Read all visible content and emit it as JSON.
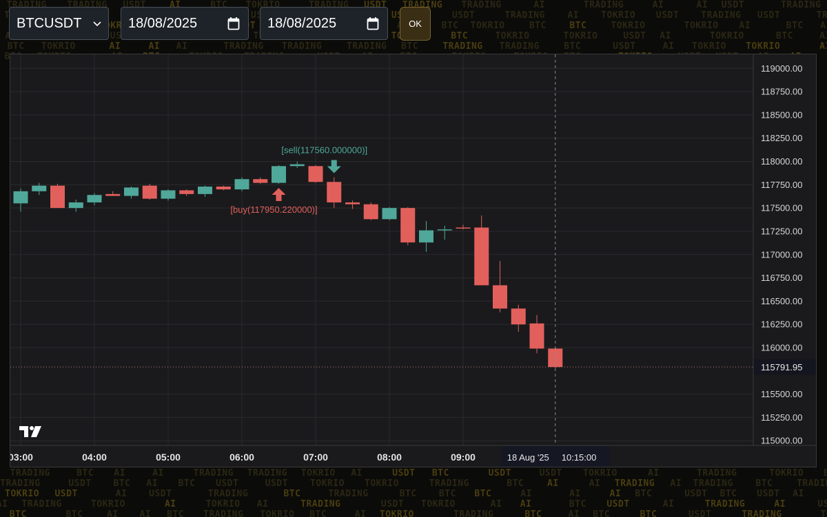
{
  "background_words": [
    "BTC",
    "AI",
    "TRADING",
    "TOKRIO",
    "USDT"
  ],
  "toolbar": {
    "symbol_select": {
      "value": "BTCUSDT",
      "icon": "chevron-down-icon"
    },
    "start_date": {
      "value": "18/08/2025",
      "icon": "calendar-icon"
    },
    "end_date": {
      "value": "18/08/2025",
      "icon": "calendar-icon"
    },
    "ok_label": "OK"
  },
  "colors": {
    "up": "#4fa89a",
    "down": "#e2605c",
    "buy_marker": "#e2605c",
    "sell_marker": "#4fa89a",
    "last_price_label_bg": "#14161f",
    "crosshair_label_bg": "#151823"
  },
  "chart_data": {
    "type": "candlestick",
    "title": "",
    "grid": true,
    "ylim": [
      114950,
      119150
    ],
    "y_ticks": [
      "115000.00",
      "115250.00",
      "115500.00",
      "116000.00",
      "116250.00",
      "116500.00",
      "116750.00",
      "117000.00",
      "117250.00",
      "117500.00",
      "117750.00",
      "118000.00",
      "118250.00",
      "118500.00",
      "118750.00",
      "119000.00"
    ],
    "x_ticks": [
      {
        "label": "03:00",
        "time": "03:00"
      },
      {
        "label": "04:00",
        "time": "04:00"
      },
      {
        "label": "05:00",
        "time": "05:00"
      },
      {
        "label": "06:00",
        "time": "06:00"
      },
      {
        "label": "07:00",
        "time": "07:00"
      },
      {
        "label": "08:00",
        "time": "08:00"
      },
      {
        "label": "09:00",
        "time": "09:00"
      }
    ],
    "candles": [
      {
        "time": "03:00",
        "open": 117550,
        "high": 117710,
        "low": 117460,
        "close": 117680
      },
      {
        "time": "03:15",
        "open": 117680,
        "high": 117770,
        "low": 117640,
        "close": 117740
      },
      {
        "time": "03:30",
        "open": 117740,
        "high": 117760,
        "low": 117500,
        "close": 117500
      },
      {
        "time": "03:45",
        "open": 117500,
        "high": 117590,
        "low": 117460,
        "close": 117560
      },
      {
        "time": "04:00",
        "open": 117560,
        "high": 117660,
        "low": 117530,
        "close": 117640
      },
      {
        "time": "04:15",
        "open": 117650,
        "high": 117680,
        "low": 117630,
        "close": 117630
      },
      {
        "time": "04:30",
        "open": 117630,
        "high": 117730,
        "low": 117600,
        "close": 117720
      },
      {
        "time": "04:45",
        "open": 117740,
        "high": 117760,
        "low": 117590,
        "close": 117600
      },
      {
        "time": "05:00",
        "open": 117600,
        "high": 117700,
        "low": 117580,
        "close": 117690
      },
      {
        "time": "05:15",
        "open": 117690,
        "high": 117700,
        "low": 117630,
        "close": 117650
      },
      {
        "time": "05:30",
        "open": 117650,
        "high": 117740,
        "low": 117620,
        "close": 117730
      },
      {
        "time": "05:45",
        "open": 117730,
        "high": 117740,
        "low": 117690,
        "close": 117700
      },
      {
        "time": "06:00",
        "open": 117700,
        "high": 117830,
        "low": 117680,
        "close": 117810
      },
      {
        "time": "06:15",
        "open": 117810,
        "high": 117830,
        "low": 117760,
        "close": 117770
      },
      {
        "time": "06:30",
        "open": 117770,
        "high": 117960,
        "low": 117760,
        "close": 117950
      },
      {
        "time": "06:45",
        "open": 117950,
        "high": 118000,
        "low": 117930,
        "close": 117970
      },
      {
        "time": "07:00",
        "open": 117950,
        "high": 117960,
        "low": 117770,
        "close": 117780
      },
      {
        "time": "07:15",
        "open": 117780,
        "high": 117830,
        "low": 117500,
        "close": 117560
      },
      {
        "time": "07:30",
        "open": 117560,
        "high": 117580,
        "low": 117490,
        "close": 117540
      },
      {
        "time": "07:45",
        "open": 117540,
        "high": 117560,
        "low": 117370,
        "close": 117380
      },
      {
        "time": "08:00",
        "open": 117380,
        "high": 117510,
        "low": 117370,
        "close": 117500
      },
      {
        "time": "08:15",
        "open": 117500,
        "high": 117510,
        "low": 117100,
        "close": 117130
      },
      {
        "time": "08:30",
        "open": 117130,
        "high": 117360,
        "low": 117030,
        "close": 117260
      },
      {
        "time": "08:45",
        "open": 117260,
        "high": 117310,
        "low": 117160,
        "close": 117270
      },
      {
        "time": "09:00",
        "open": 117290,
        "high": 117320,
        "low": 117270,
        "close": 117280
      },
      {
        "time": "09:15",
        "open": 117290,
        "high": 117420,
        "low": 116670,
        "close": 116670
      },
      {
        "time": "09:30",
        "open": 116670,
        "high": 116930,
        "low": 116380,
        "close": 116420
      },
      {
        "time": "09:45",
        "open": 116420,
        "high": 116460,
        "low": 116170,
        "close": 116250
      },
      {
        "time": "10:00",
        "open": 116260,
        "high": 116350,
        "low": 115940,
        "close": 115990
      },
      {
        "time": "10:15",
        "open": 115990,
        "high": 116010,
        "low": 115780,
        "close": 115792
      }
    ],
    "markers": [
      {
        "type": "buy",
        "time": "06:30",
        "label": "[buy(117950.220000)]"
      },
      {
        "type": "sell",
        "time": "07:15",
        "label": "[sell(117560.000000)]"
      }
    ],
    "last_price": {
      "value": 115791.95,
      "label": "115791.95"
    },
    "crosshair": {
      "time": "10:15",
      "date_label": "18 Aug '25",
      "time_label": "10:15:00"
    }
  }
}
